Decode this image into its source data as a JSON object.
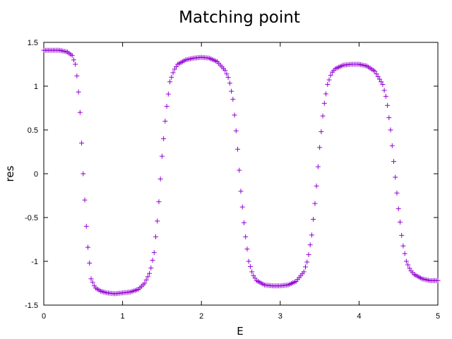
{
  "chart_data": {
    "type": "scatter",
    "title": "Matching point",
    "xlabel": "E",
    "ylabel": "res",
    "xlim": [
      0,
      5
    ],
    "ylim": [
      -1.5,
      1.5
    ],
    "xticks": [
      0,
      1,
      2,
      3,
      4,
      5
    ],
    "yticks": [
      -1.5,
      -1,
      -0.5,
      0,
      0.5,
      1,
      1.5
    ],
    "xtick_labels": [
      "0",
      "1",
      "2",
      "3",
      "4",
      "5"
    ],
    "ytick_labels": [
      "-1.5",
      "-1",
      "-0.5",
      "0",
      "0.5",
      "1",
      "1.5"
    ],
    "grid": false,
    "marker": "+",
    "marker_color": "#9400d3",
    "x_step": 0.02,
    "curve_x": [
      0,
      0.2,
      0.3,
      0.36,
      0.4,
      0.43,
      0.46,
      0.5,
      0.55,
      0.6,
      0.65,
      0.72,
      0.8,
      0.9,
      1.0,
      1.1,
      1.2,
      1.28,
      1.35,
      1.4,
      1.45,
      1.5,
      1.55,
      1.6,
      1.65,
      1.7,
      1.8,
      1.9,
      2.0,
      2.1,
      2.2,
      2.3,
      2.35,
      2.4,
      2.45,
      2.5,
      2.55,
      2.6,
      2.65,
      2.7,
      2.8,
      2.9,
      3.0,
      3.1,
      3.2,
      3.3,
      3.35,
      3.4,
      3.45,
      3.5,
      3.55,
      3.6,
      3.65,
      3.7,
      3.8,
      3.9,
      4.0,
      4.1,
      4.2,
      4.3,
      4.35,
      4.4,
      4.45,
      4.5,
      4.55,
      4.6,
      4.65,
      4.7,
      4.8,
      4.9,
      5.0
    ],
    "curve_y": [
      1.41,
      1.41,
      1.39,
      1.35,
      1.25,
      1.05,
      0.7,
      0.0,
      -0.75,
      -1.2,
      -1.3,
      -1.34,
      -1.36,
      -1.37,
      -1.36,
      -1.35,
      -1.32,
      -1.25,
      -1.12,
      -0.9,
      -0.45,
      0.2,
      0.7,
      1.05,
      1.18,
      1.25,
      1.3,
      1.32,
      1.33,
      1.32,
      1.28,
      1.18,
      1.08,
      0.85,
      0.4,
      -0.2,
      -0.65,
      -1.0,
      -1.15,
      -1.22,
      -1.27,
      -1.28,
      -1.28,
      -1.27,
      -1.23,
      -1.12,
      -0.98,
      -0.7,
      -0.25,
      0.3,
      0.75,
      1.02,
      1.15,
      1.2,
      1.24,
      1.25,
      1.25,
      1.23,
      1.17,
      1.02,
      0.85,
      0.5,
      0.05,
      -0.4,
      -0.78,
      -1.0,
      -1.1,
      -1.15,
      -1.2,
      -1.22,
      -1.22
    ]
  }
}
